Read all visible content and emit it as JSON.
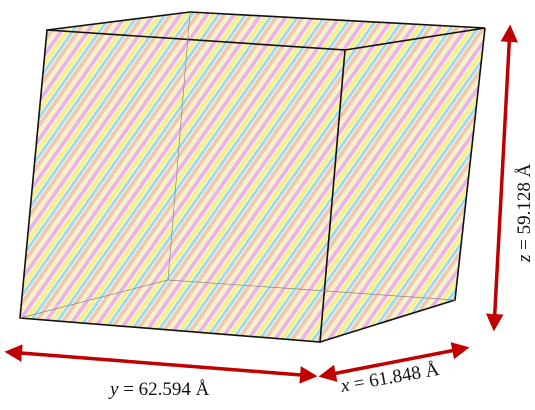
{
  "dimensions": [
    {
      "axis": "y",
      "text": "= 62.594 Å"
    },
    {
      "axis": "x",
      "text": "= 61.848 Å"
    },
    {
      "axis": "z",
      "text": "= 59.128 Å"
    }
  ]
}
